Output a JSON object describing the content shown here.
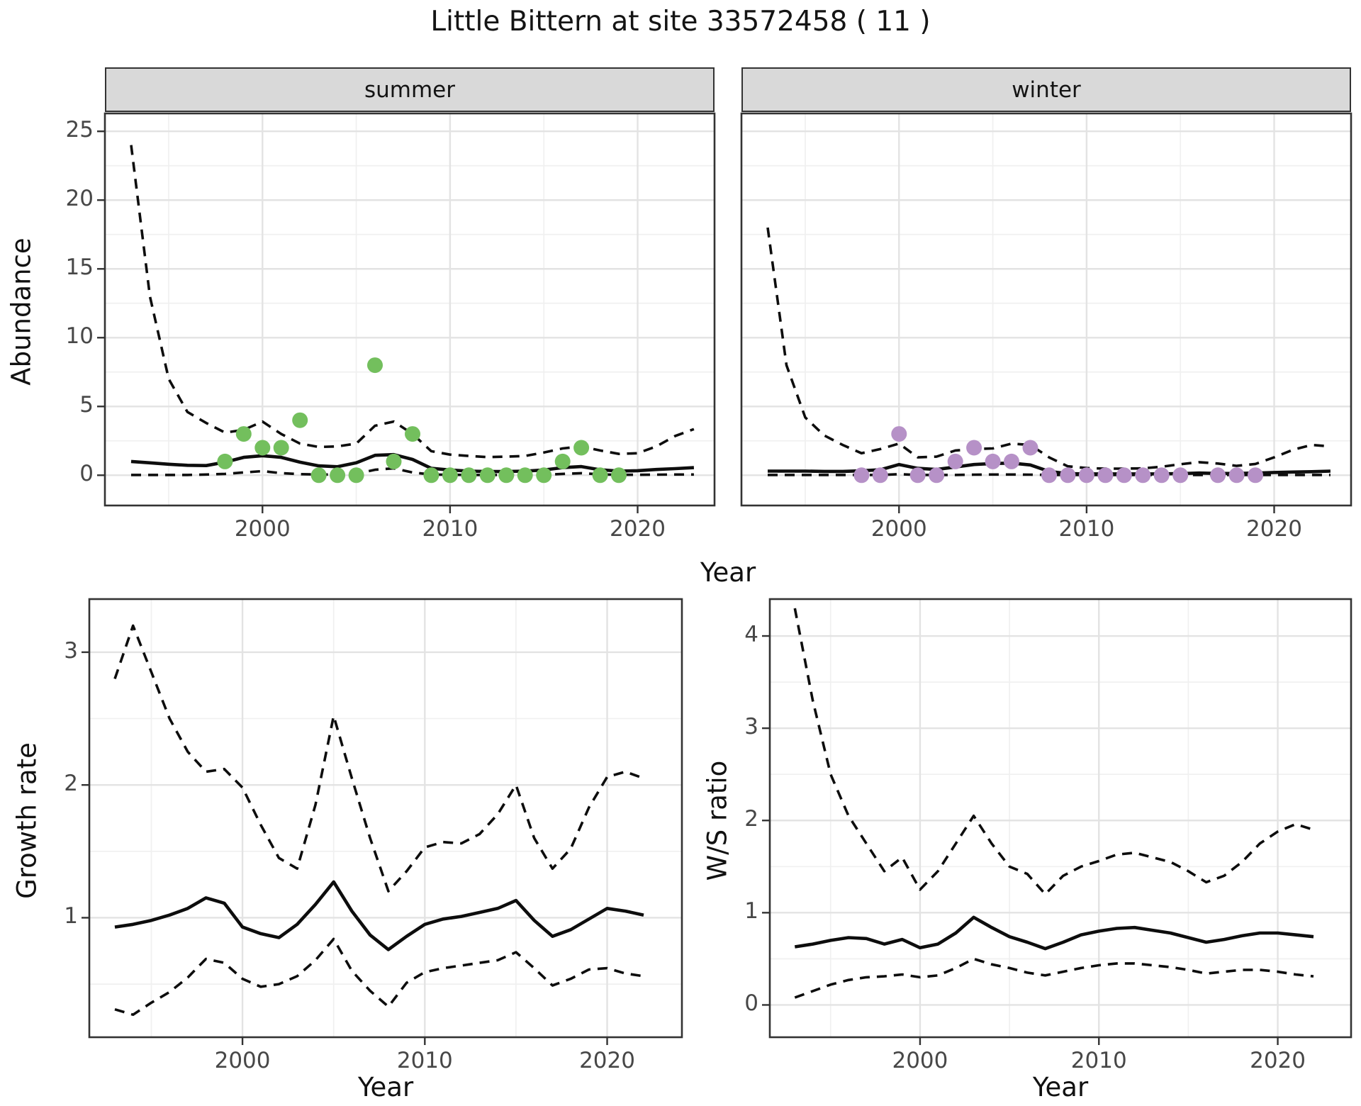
{
  "title": "Little Bittern at site 33572458 ( 11 )",
  "labels": {
    "x_title": "Year",
    "abundance": "Abundance",
    "growth": "Growth rate",
    "ws": "W/S ratio"
  },
  "facets": {
    "summer": "summer",
    "winter": "winter"
  },
  "style": {
    "point_green": "#73bf5d",
    "point_purple": "#b691c7",
    "line_color": "#0d0d0d",
    "strip_bg": "#d9d9d9",
    "panel_border": "#333333",
    "grid_major": "#e3e3e3",
    "grid_minor": "#f0f0f0",
    "axis_text": "#474747"
  },
  "chart_data": [
    {
      "id": "abundance-summer",
      "type": "line",
      "facet": "summer",
      "ylabel": "Abundance",
      "xlabel": "Year",
      "x": {
        "lim": [
          1991.6,
          2024.1
        ],
        "ticks": [
          2000,
          2010,
          2020
        ],
        "minor": [
          1995,
          2005,
          2015
        ]
      },
      "y": {
        "lim": [
          -2.2,
          26.3
        ],
        "ticks": [
          0,
          5,
          10,
          15,
          20,
          25
        ],
        "minor": [
          2.5,
          7.5,
          12.5,
          17.5,
          22.5
        ],
        "show_labels": true
      },
      "years": [
        1993,
        1994,
        1995,
        1996,
        1997,
        1998,
        1999,
        2000,
        2001,
        2002,
        2003,
        2004,
        2005,
        2006,
        2007,
        2008,
        2009,
        2010,
        2011,
        2012,
        2013,
        2014,
        2015,
        2016,
        2017,
        2018,
        2019,
        2020,
        2021,
        2022,
        2023
      ],
      "lines": [
        {
          "name": "upper-ci",
          "dash": true,
          "values": [
            24,
            13,
            7,
            4.6,
            3.8,
            3.1,
            3.3,
            3.9,
            3.0,
            2.3,
            2.05,
            2.1,
            2.3,
            3.6,
            3.9,
            3.0,
            1.75,
            1.5,
            1.4,
            1.32,
            1.35,
            1.4,
            1.65,
            1.95,
            2.1,
            1.8,
            1.55,
            1.6,
            2.1,
            2.85,
            3.35
          ]
        },
        {
          "name": "lower-ci",
          "dash": true,
          "values": [
            0.02,
            0.02,
            0.02,
            0.02,
            0.05,
            0.1,
            0.2,
            0.3,
            0.15,
            0.08,
            0.05,
            0.05,
            0.1,
            0.4,
            0.5,
            0.2,
            0.05,
            0.03,
            0.02,
            0.02,
            0.02,
            0.02,
            0.03,
            0.1,
            0.15,
            0.06,
            0.03,
            0.03,
            0.04,
            0.05,
            0.05
          ]
        },
        {
          "name": "median",
          "dash": false,
          "values": [
            1.0,
            0.9,
            0.8,
            0.72,
            0.7,
            0.95,
            1.3,
            1.42,
            1.3,
            0.95,
            0.68,
            0.62,
            0.9,
            1.45,
            1.5,
            1.15,
            0.5,
            0.38,
            0.3,
            0.27,
            0.27,
            0.3,
            0.38,
            0.55,
            0.63,
            0.4,
            0.3,
            0.33,
            0.42,
            0.48,
            0.55
          ]
        }
      ],
      "points": {
        "name": "summer-observations",
        "color": "#73bf5d",
        "years": [
          1998,
          1999,
          2000,
          2001,
          2002,
          2003,
          2004,
          2005,
          2006,
          2007,
          2008,
          2009,
          2010,
          2011,
          2012,
          2013,
          2014,
          2015,
          2016,
          2017,
          2018,
          2019
        ],
        "values": [
          1,
          3,
          2,
          2,
          4,
          0,
          0,
          0,
          8,
          1,
          3,
          0,
          0,
          0,
          0,
          0,
          0,
          0,
          1,
          2,
          0,
          0
        ]
      }
    },
    {
      "id": "abundance-winter",
      "type": "line",
      "facet": "winter",
      "ylabel": "Abundance",
      "xlabel": "Year",
      "x": {
        "lim": [
          1991.6,
          2024.1
        ],
        "ticks": [
          2000,
          2010,
          2020
        ],
        "minor": [
          1995,
          2005,
          2015
        ]
      },
      "y": {
        "lim": [
          -2.2,
          26.3
        ],
        "ticks": [
          0,
          5,
          10,
          15,
          20,
          25
        ],
        "minor": [
          2.5,
          7.5,
          12.5,
          17.5,
          22.5
        ],
        "show_labels": false
      },
      "years": [
        1993,
        1994,
        1995,
        1996,
        1997,
        1998,
        1999,
        2000,
        2001,
        2002,
        2003,
        2004,
        2005,
        2006,
        2007,
        2008,
        2009,
        2010,
        2011,
        2012,
        2013,
        2014,
        2015,
        2016,
        2017,
        2018,
        2019,
        2020,
        2021,
        2022,
        2023
      ],
      "lines": [
        {
          "name": "upper-ci",
          "dash": true,
          "values": [
            18,
            8,
            4.2,
            2.9,
            2.2,
            1.6,
            1.9,
            2.3,
            1.3,
            1.35,
            1.8,
            1.9,
            1.95,
            2.3,
            2.2,
            1.3,
            0.65,
            0.52,
            0.48,
            0.48,
            0.5,
            0.62,
            0.8,
            0.95,
            0.85,
            0.68,
            0.82,
            1.3,
            1.85,
            2.2,
            2.1
          ]
        },
        {
          "name": "lower-ci",
          "dash": true,
          "values": [
            0.02,
            0.02,
            0.02,
            0.02,
            0.02,
            0.02,
            0.02,
            0.08,
            0.02,
            0.02,
            0.02,
            0.04,
            0.05,
            0.05,
            0.04,
            0.02,
            0.02,
            0.02,
            0.02,
            0.02,
            0.02,
            0.02,
            0.02,
            0.02,
            0.02,
            0.02,
            0.02,
            0.02,
            0.02,
            0.02,
            0.02
          ]
        },
        {
          "name": "median",
          "dash": false,
          "values": [
            0.3,
            0.3,
            0.3,
            0.28,
            0.28,
            0.32,
            0.4,
            0.78,
            0.5,
            0.42,
            0.6,
            0.78,
            0.85,
            0.88,
            0.75,
            0.28,
            0.12,
            0.1,
            0.1,
            0.1,
            0.1,
            0.1,
            0.12,
            0.16,
            0.13,
            0.13,
            0.16,
            0.2,
            0.23,
            0.26,
            0.3
          ]
        }
      ],
      "points": {
        "name": "winter-observations",
        "color": "#b691c7",
        "years": [
          1998,
          1999,
          2000,
          2001,
          2002,
          2003,
          2004,
          2005,
          2006,
          2007,
          2008,
          2009,
          2010,
          2011,
          2012,
          2013,
          2014,
          2015,
          2017,
          2018,
          2019
        ],
        "values": [
          0,
          0,
          3,
          0,
          0,
          1,
          2,
          1,
          1,
          2,
          0,
          0,
          0,
          0,
          0,
          0,
          0,
          0,
          0,
          0,
          0
        ]
      }
    },
    {
      "id": "growth-rate",
      "type": "line",
      "facet": null,
      "ylabel": "Growth rate",
      "xlabel": "Year",
      "x": {
        "lim": [
          1991.6,
          2024.1
        ],
        "ticks": [
          2000,
          2010,
          2020
        ],
        "minor": [
          1995,
          2005,
          2015
        ]
      },
      "y": {
        "lim": [
          0.1,
          3.4
        ],
        "ticks": [
          1,
          2,
          3
        ],
        "minor": [
          0.5,
          1.5,
          2.5
        ],
        "show_labels": true
      },
      "years": [
        1993,
        1994,
        1995,
        1996,
        1997,
        1998,
        1999,
        2000,
        2001,
        2002,
        2003,
        2004,
        2005,
        2006,
        2007,
        2008,
        2009,
        2010,
        2011,
        2012,
        2013,
        2014,
        2015,
        2016,
        2017,
        2018,
        2019,
        2020,
        2021,
        2022
      ],
      "lines": [
        {
          "name": "upper-ci",
          "dash": true,
          "values": [
            2.8,
            3.2,
            2.85,
            2.5,
            2.25,
            2.1,
            2.12,
            1.98,
            1.7,
            1.45,
            1.37,
            1.85,
            2.52,
            2.05,
            1.6,
            1.2,
            1.35,
            1.53,
            1.57,
            1.56,
            1.63,
            1.78,
            2.0,
            1.6,
            1.37,
            1.52,
            1.83,
            2.06,
            2.1,
            2.05
          ]
        },
        {
          "name": "lower-ci",
          "dash": true,
          "values": [
            0.31,
            0.27,
            0.36,
            0.44,
            0.55,
            0.69,
            0.66,
            0.54,
            0.48,
            0.5,
            0.56,
            0.68,
            0.84,
            0.6,
            0.45,
            0.33,
            0.51,
            0.59,
            0.62,
            0.64,
            0.66,
            0.68,
            0.74,
            0.62,
            0.49,
            0.54,
            0.61,
            0.62,
            0.58,
            0.56
          ]
        },
        {
          "name": "median",
          "dash": false,
          "values": [
            0.93,
            0.95,
            0.98,
            1.02,
            1.07,
            1.15,
            1.11,
            0.93,
            0.88,
            0.85,
            0.95,
            1.1,
            1.27,
            1.05,
            0.87,
            0.76,
            0.86,
            0.95,
            0.99,
            1.01,
            1.04,
            1.07,
            1.13,
            0.98,
            0.86,
            0.91,
            0.99,
            1.07,
            1.05,
            1.02
          ]
        }
      ],
      "points": null
    },
    {
      "id": "ws-ratio",
      "type": "line",
      "facet": null,
      "ylabel": "W/S ratio",
      "xlabel": "Year",
      "x": {
        "lim": [
          1991.6,
          2024.1
        ],
        "ticks": [
          2000,
          2010,
          2020
        ],
        "minor": [
          1995,
          2005,
          2015
        ]
      },
      "y": {
        "lim": [
          -0.35,
          4.4
        ],
        "ticks": [
          0,
          1,
          2,
          3,
          4
        ],
        "minor": [
          0.5,
          1.5,
          2.5,
          3.5
        ],
        "show_labels": true
      },
      "years": [
        1993,
        1994,
        1995,
        1996,
        1997,
        1998,
        1999,
        2000,
        2001,
        2002,
        2003,
        2004,
        2005,
        2006,
        2007,
        2008,
        2009,
        2010,
        2011,
        2012,
        2013,
        2014,
        2015,
        2016,
        2017,
        2018,
        2019,
        2020,
        2021,
        2022
      ],
      "lines": [
        {
          "name": "upper-ci",
          "dash": true,
          "values": [
            4.3,
            3.3,
            2.5,
            2.05,
            1.75,
            1.45,
            1.6,
            1.25,
            1.45,
            1.75,
            2.05,
            1.75,
            1.5,
            1.42,
            1.2,
            1.4,
            1.5,
            1.56,
            1.63,
            1.65,
            1.6,
            1.55,
            1.45,
            1.33,
            1.4,
            1.55,
            1.75,
            1.88,
            1.96,
            1.9
          ]
        },
        {
          "name": "lower-ci",
          "dash": true,
          "values": [
            0.08,
            0.15,
            0.22,
            0.27,
            0.3,
            0.31,
            0.33,
            0.3,
            0.32,
            0.4,
            0.5,
            0.44,
            0.4,
            0.35,
            0.32,
            0.36,
            0.4,
            0.43,
            0.45,
            0.45,
            0.43,
            0.41,
            0.38,
            0.34,
            0.36,
            0.38,
            0.38,
            0.36,
            0.33,
            0.31
          ]
        },
        {
          "name": "median",
          "dash": false,
          "values": [
            0.63,
            0.66,
            0.7,
            0.73,
            0.72,
            0.66,
            0.71,
            0.62,
            0.66,
            0.78,
            0.95,
            0.84,
            0.74,
            0.68,
            0.61,
            0.68,
            0.76,
            0.8,
            0.83,
            0.84,
            0.81,
            0.78,
            0.73,
            0.68,
            0.71,
            0.75,
            0.78,
            0.78,
            0.76,
            0.74
          ]
        }
      ],
      "points": null
    }
  ]
}
